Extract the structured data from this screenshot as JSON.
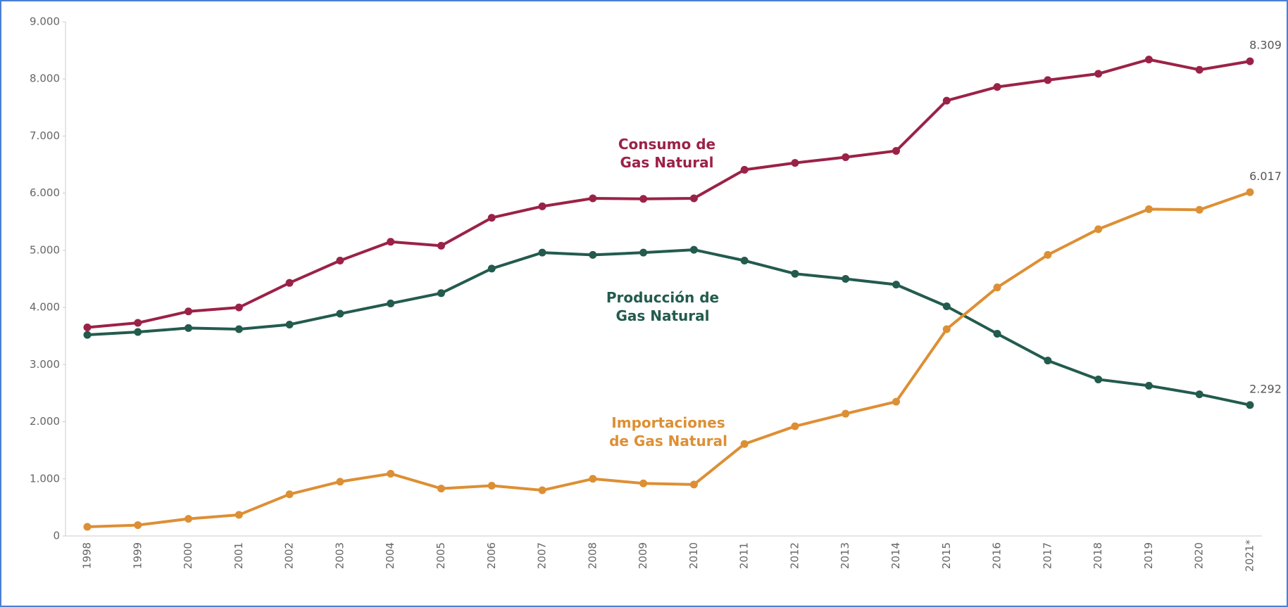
{
  "chart_data": {
    "type": "line",
    "categories": [
      "1998",
      "1999",
      "2000",
      "2001",
      "2002",
      "2003",
      "2004",
      "2005",
      "2006",
      "2007",
      "2008",
      "2009",
      "2010",
      "2011",
      "2012",
      "2013",
      "2014",
      "2015",
      "2016",
      "2017",
      "2018",
      "2019",
      "2020",
      "2021*"
    ],
    "ylim": [
      0,
      9000
    ],
    "yticks": [
      0,
      {
        "value": 1000,
        "label": "1.000"
      },
      {
        "value": 2000,
        "label": "2.000"
      },
      {
        "value": 3000,
        "label": "3.000"
      },
      {
        "value": 4000,
        "label": "4.000"
      },
      {
        "value": 5000,
        "label": "5.000"
      },
      {
        "value": 6000,
        "label": "6.000"
      },
      {
        "value": 7000,
        "label": "7.000"
      },
      {
        "value": 8000,
        "label": "8.000"
      },
      {
        "value": 9000,
        "label": "9.000"
      }
    ],
    "grid": false,
    "series": [
      {
        "name": "Consumo de Gas Natural",
        "color": "#9b2247",
        "values": [
          3650,
          3730,
          3930,
          4000,
          4430,
          4820,
          5150,
          5080,
          5570,
          5770,
          5910,
          5900,
          5910,
          6410,
          6530,
          6630,
          6740,
          7620,
          7860,
          7980,
          8090,
          8340,
          8160,
          8309
        ],
        "value_labels": [
          null,
          null,
          null,
          null,
          null,
          null,
          null,
          null,
          null,
          null,
          null,
          null,
          null,
          null,
          null,
          null,
          null,
          null,
          null,
          null,
          null,
          null,
          null,
          "8.309"
        ]
      },
      {
        "name": "Producción de Gas Natural",
        "color": "#235b4e",
        "values": [
          3520,
          3570,
          3640,
          3620,
          3700,
          3890,
          4070,
          4250,
          4680,
          4960,
          4920,
          4960,
          5010,
          4820,
          4590,
          4500,
          4400,
          4020,
          3540,
          3070,
          2740,
          2630,
          2480,
          2292
        ],
        "value_labels": [
          null,
          null,
          null,
          null,
          null,
          null,
          null,
          null,
          null,
          null,
          null,
          null,
          null,
          null,
          null,
          null,
          null,
          null,
          null,
          null,
          null,
          null,
          null,
          "2.292"
        ]
      },
      {
        "name": "Importaciones de Gas Natural",
        "color": "#dd8f34",
        "values": [
          160,
          190,
          300,
          370,
          730,
          950,
          1090,
          830,
          880,
          800,
          1000,
          920,
          900,
          1610,
          1920,
          2140,
          2350,
          3620,
          4350,
          4920,
          5370,
          5720,
          5710,
          6017
        ],
        "value_labels": [
          null,
          null,
          null,
          null,
          null,
          null,
          null,
          null,
          null,
          null,
          null,
          null,
          null,
          null,
          null,
          null,
          null,
          null,
          null,
          null,
          null,
          null,
          null,
          "6.017"
        ]
      }
    ]
  }
}
